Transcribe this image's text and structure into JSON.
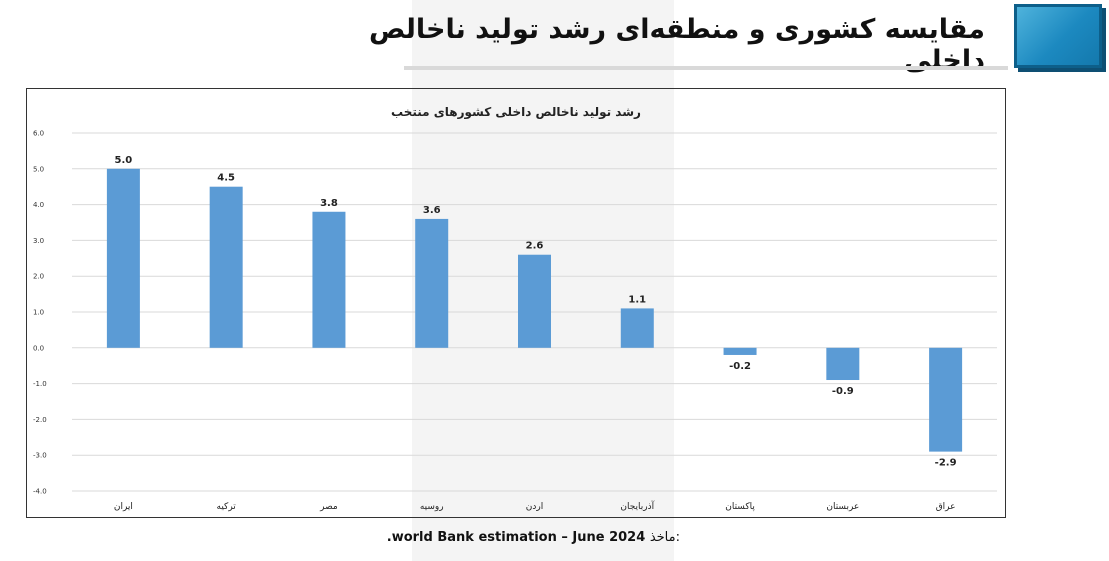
{
  "header": {
    "title": "مقایسه کشوری و منطقه‌ای رشد تولید ناخالص داخلی"
  },
  "source": {
    "label": "ماخذ:",
    "text": ".world Bank estimation – June 2024"
  },
  "colors": {
    "bar": "#5b9bd5",
    "accent_box": "#1c89c0",
    "grid": "#d9d9d9"
  },
  "chart_data": {
    "type": "bar",
    "title": "رشد تولید ناخالص داخلی کشورهای منتخب",
    "categories": [
      "ایران",
      "ترکیه",
      "مصر",
      "روسیه",
      "اردن",
      "آذربایجان",
      "پاکستان",
      "عربستان",
      "عراق"
    ],
    "values": [
      5.0,
      4.5,
      3.8,
      3.6,
      2.6,
      1.1,
      -0.2,
      -0.9,
      -2.9
    ],
    "value_labels": [
      "5.0",
      "4.5",
      "3.8",
      "3.6",
      "2.6",
      "1.1",
      "-0.2",
      "-0.9",
      "-2.9"
    ],
    "ylim": [
      -4.0,
      6.0
    ],
    "yticks": [
      "-4.0",
      "-3.0",
      "-2.0",
      "-1.0",
      "0.0",
      "1.0",
      "2.0",
      "3.0",
      "4.0",
      "5.0",
      "6.0"
    ],
    "xlabel": "",
    "ylabel": "",
    "grid": true,
    "legend": "none"
  }
}
